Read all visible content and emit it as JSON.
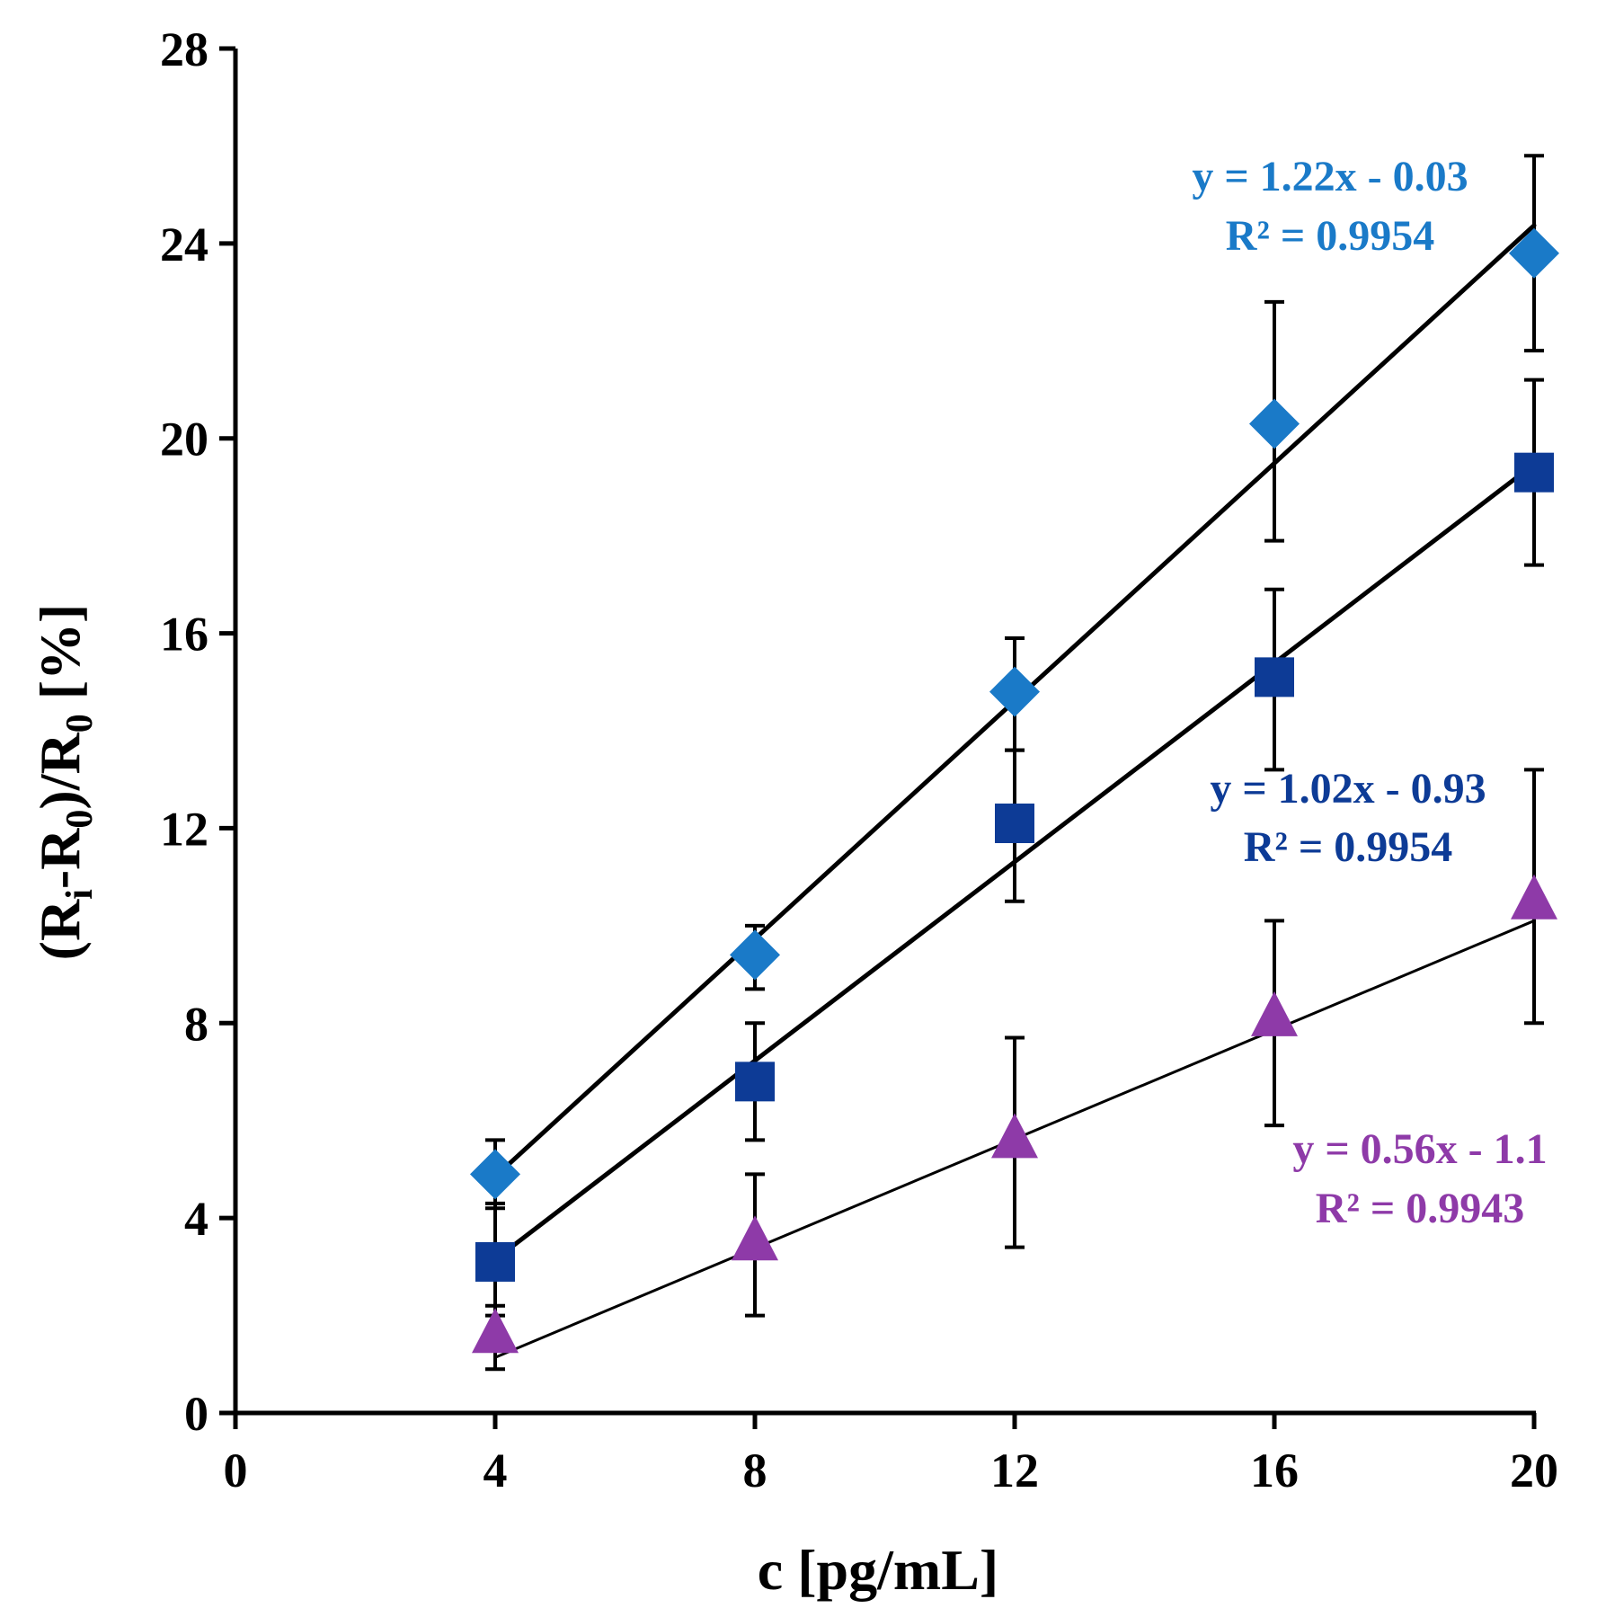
{
  "chart_data": {
    "type": "scatter",
    "xlabel": "c [pg/mL]",
    "ylabel": {
      "parts": [
        {
          "t": "(R",
          "sub": false
        },
        {
          "t": "i",
          "sub": true
        },
        {
          "t": "-R",
          "sub": false
        },
        {
          "t": "0",
          "sub": true
        },
        {
          "t": ")/R",
          "sub": false
        },
        {
          "t": "0",
          "sub": true
        },
        {
          "t": " [%]",
          "sub": false
        }
      ]
    },
    "xlim": [
      0,
      20
    ],
    "ylim": [
      0,
      28
    ],
    "x_ticks": [
      0,
      4,
      8,
      12,
      16,
      20
    ],
    "y_ticks": [
      0,
      4,
      8,
      12,
      16,
      20,
      24,
      28
    ],
    "x_tick_labels": [
      "0",
      "4",
      "8",
      "12",
      "16",
      "20"
    ],
    "y_tick_labels": [
      "0",
      "4",
      "8",
      "12",
      "16",
      "20",
      "24",
      "28"
    ],
    "grid": false,
    "x": [
      4,
      8,
      12,
      16,
      20
    ],
    "series": [
      {
        "marker": "diamond",
        "color": "#1a7ac8",
        "y": [
          4.9,
          9.4,
          14.8,
          20.3,
          23.8
        ],
        "err_low": [
          4.2,
          8.7,
          13.6,
          17.9,
          21.8
        ],
        "err_high": [
          5.6,
          10.0,
          15.9,
          22.8,
          25.8
        ],
        "trend": {
          "slope": 1.22,
          "intercept": -0.03
        },
        "trend_width": 5,
        "equation": "y = 1.22x - 0.03",
        "r2": "R² = 0.9954"
      },
      {
        "marker": "square",
        "color": "#0d3b96",
        "y": [
          3.1,
          6.8,
          12.1,
          15.1,
          19.3
        ],
        "err_low": [
          2.0,
          5.6,
          10.5,
          13.2,
          17.4
        ],
        "err_high": [
          4.3,
          8.0,
          13.6,
          16.9,
          21.2
        ],
        "trend": {
          "slope": 1.02,
          "intercept": -0.93
        },
        "trend_width": 5,
        "equation": "y = 1.02x - 0.93",
        "r2": "R² = 0.9954"
      },
      {
        "marker": "triangle",
        "color": "#8e3aa8",
        "y": [
          1.6,
          3.5,
          5.6,
          8.1,
          10.5
        ],
        "err_low": [
          0.9,
          2.0,
          3.4,
          5.9,
          8.0
        ],
        "err_high": [
          2.2,
          4.9,
          7.7,
          10.1,
          13.2
        ],
        "trend": {
          "slope": 0.56,
          "intercept": -1.1
        },
        "trend_width": 3,
        "equation": "y = 0.56x - 1.1",
        "r2": "R² = 0.9943"
      }
    ]
  }
}
